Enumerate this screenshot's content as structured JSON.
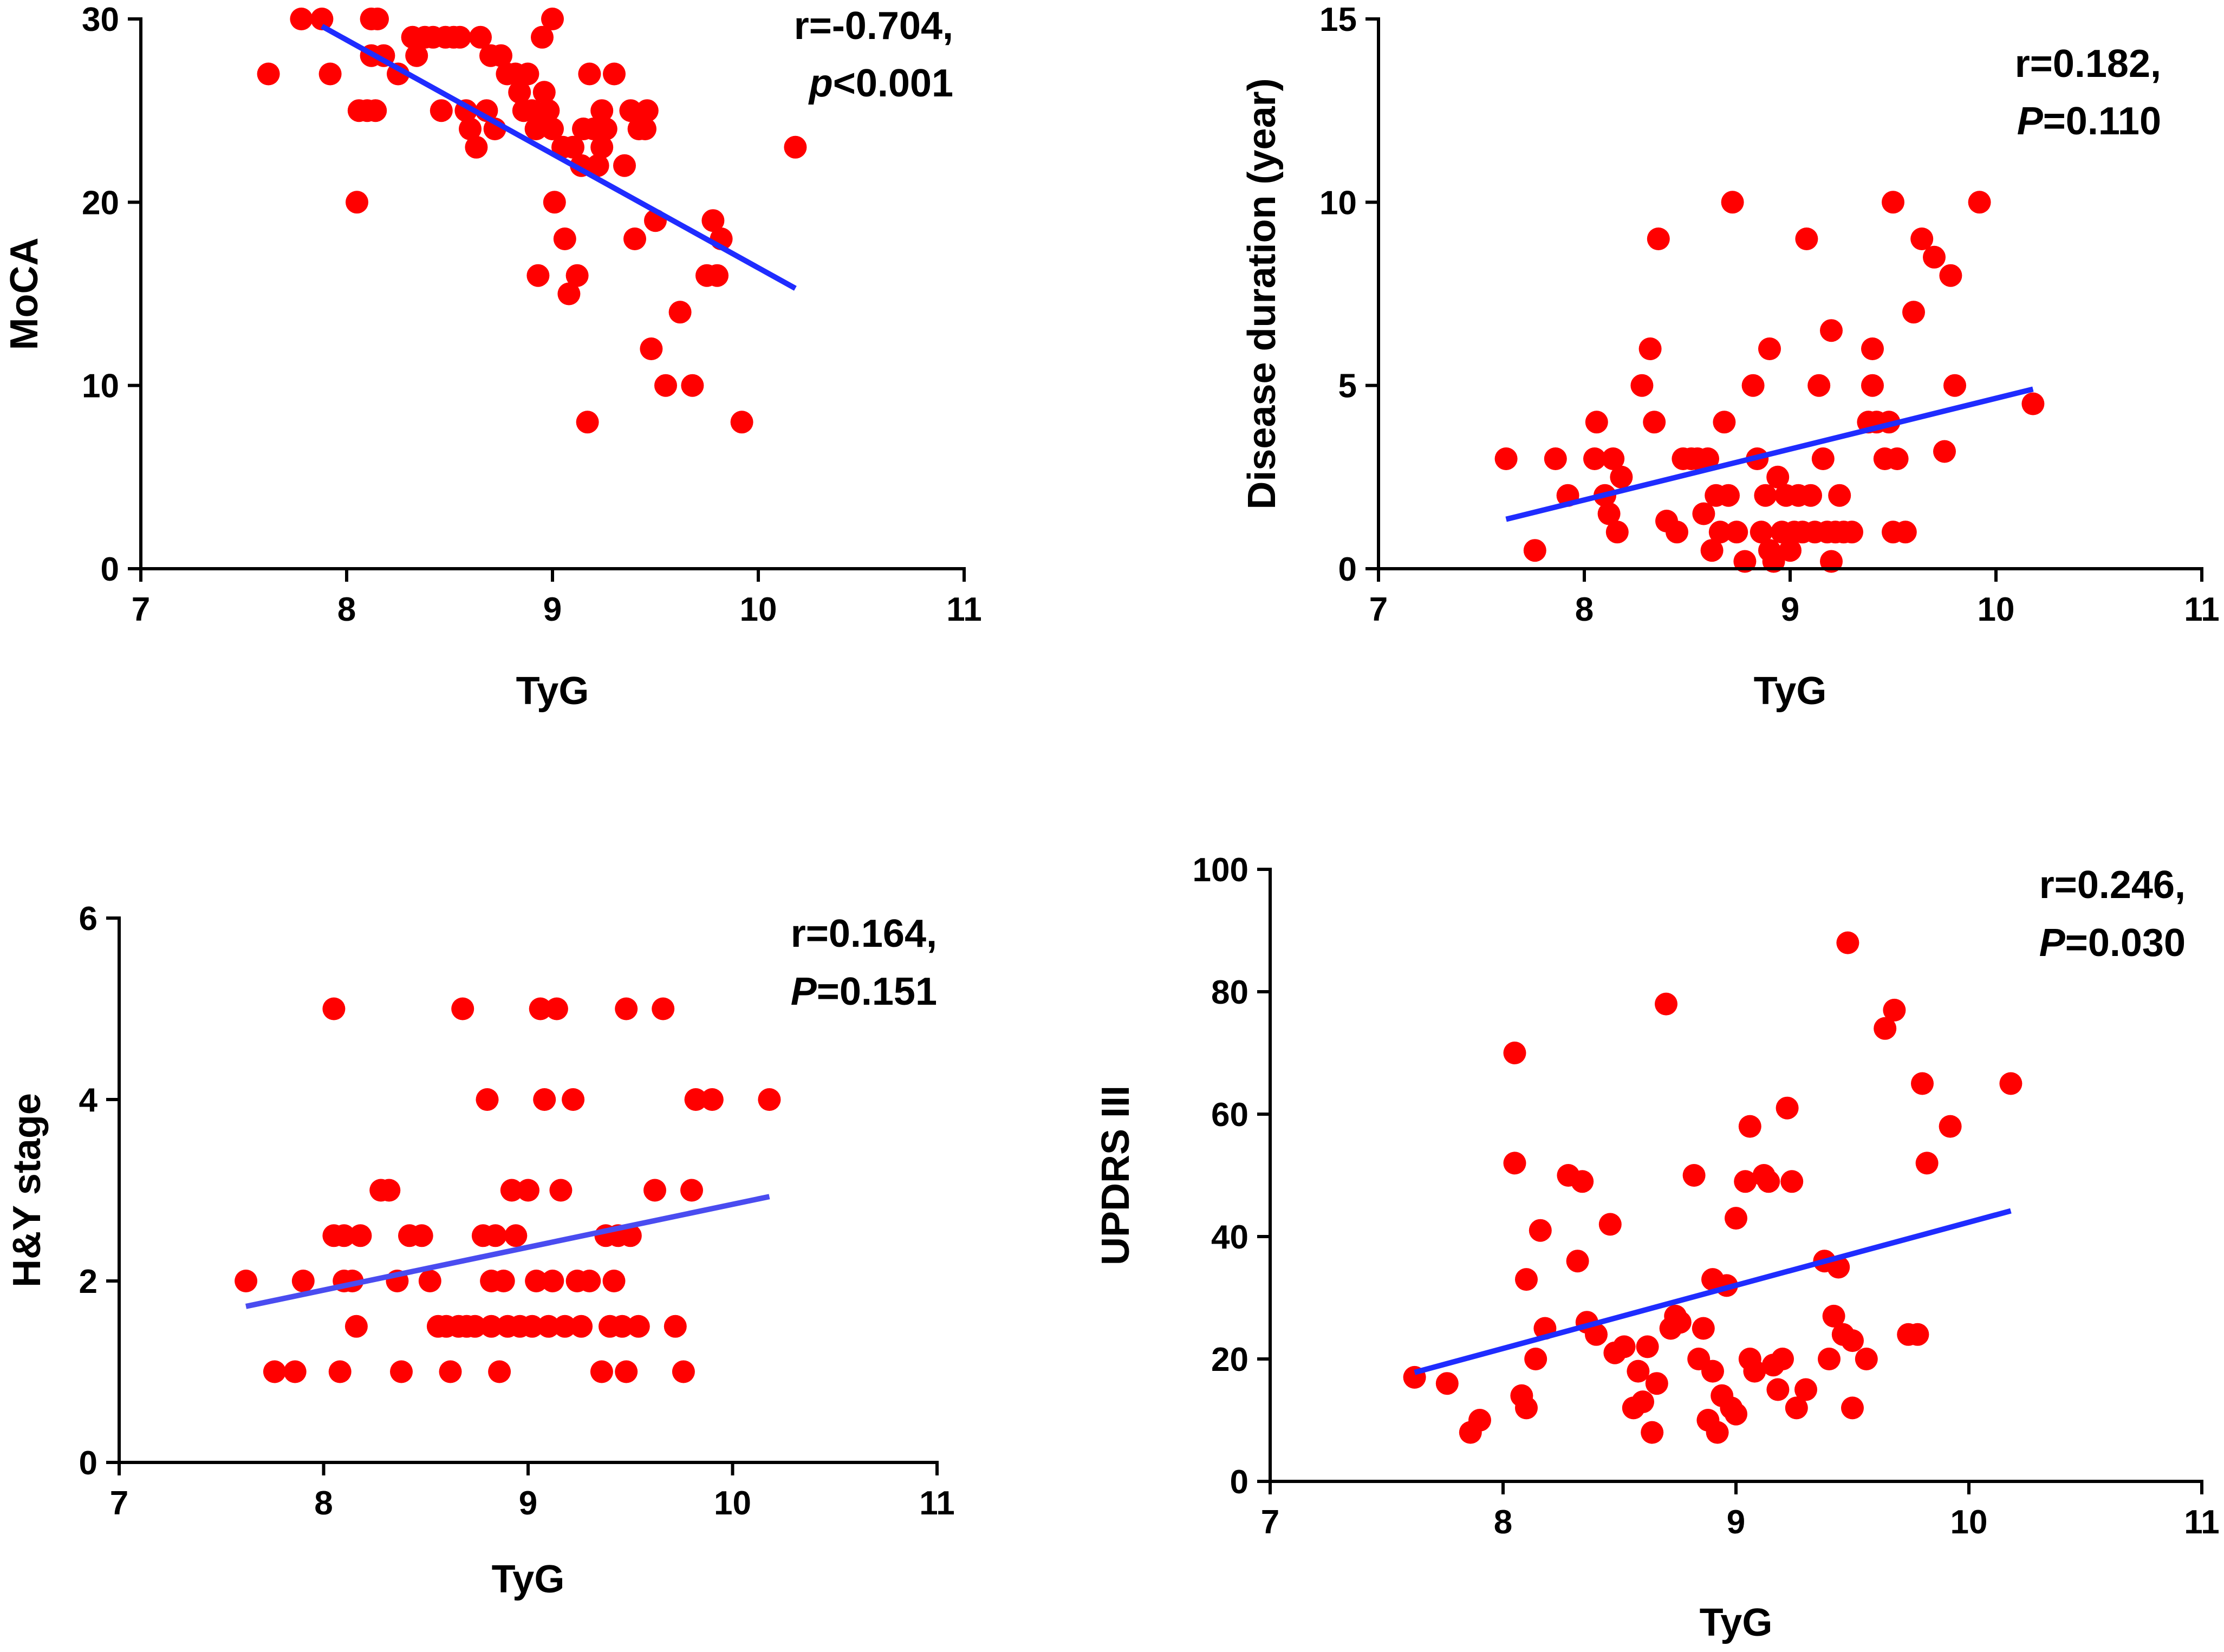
{
  "colors": {
    "points": "#ff0000",
    "fit_line": "#1f2cff",
    "fit_line_hy": "#4a4cf0",
    "axes": "#000000"
  },
  "chart_data": [
    {
      "id": "moca",
      "type": "scatter",
      "xlabel": "TyG",
      "ylabel": "MoCA",
      "xlim": [
        7,
        11
      ],
      "ylim": [
        0,
        30
      ],
      "xticks": [
        "7",
        "8",
        "9",
        "10",
        "11"
      ],
      "yticks": [
        "0",
        "10",
        "20",
        "30"
      ],
      "stats": {
        "r": "r=-0.704,",
        "p_symbol": "p",
        "p_rest": "<0.001"
      },
      "fit_line": {
        "x": [
          7.88,
          10.18
        ],
        "y": [
          29.6,
          15.3
        ]
      },
      "points": [
        [
          7.62,
          27
        ],
        [
          7.78,
          30
        ],
        [
          7.88,
          30
        ],
        [
          7.92,
          27
        ],
        [
          8.05,
          20
        ],
        [
          8.06,
          25
        ],
        [
          8.1,
          25
        ],
        [
          8.12,
          30
        ],
        [
          8.14,
          25
        ],
        [
          8.12,
          28
        ],
        [
          8.15,
          30
        ],
        [
          8.18,
          28
        ],
        [
          8.25,
          27
        ],
        [
          8.32,
          29
        ],
        [
          8.34,
          28
        ],
        [
          8.38,
          29
        ],
        [
          8.42,
          29
        ],
        [
          8.46,
          25
        ],
        [
          8.48,
          29
        ],
        [
          8.52,
          29
        ],
        [
          8.55,
          29
        ],
        [
          8.58,
          25
        ],
        [
          8.6,
          24
        ],
        [
          8.63,
          23
        ],
        [
          8.65,
          29
        ],
        [
          8.68,
          25
        ],
        [
          8.7,
          28
        ],
        [
          8.72,
          24
        ],
        [
          8.75,
          28
        ],
        [
          8.78,
          27
        ],
        [
          8.82,
          27
        ],
        [
          8.84,
          26
        ],
        [
          8.86,
          25
        ],
        [
          8.88,
          27
        ],
        [
          8.9,
          25
        ],
        [
          8.92,
          24
        ],
        [
          8.93,
          16
        ],
        [
          8.95,
          29
        ],
        [
          8.96,
          26
        ],
        [
          8.98,
          25
        ],
        [
          9.0,
          24
        ],
        [
          9.0,
          30
        ],
        [
          9.01,
          20
        ],
        [
          9.05,
          23
        ],
        [
          9.06,
          18
        ],
        [
          9.08,
          15
        ],
        [
          9.1,
          23
        ],
        [
          9.12,
          16
        ],
        [
          9.14,
          22
        ],
        [
          9.15,
          24
        ],
        [
          9.17,
          8
        ],
        [
          9.18,
          27
        ],
        [
          9.2,
          24
        ],
        [
          9.22,
          22
        ],
        [
          9.24,
          25
        ],
        [
          9.24,
          23
        ],
        [
          9.26,
          24
        ],
        [
          9.3,
          27
        ],
        [
          9.35,
          22
        ],
        [
          9.38,
          25
        ],
        [
          9.4,
          18
        ],
        [
          9.42,
          24
        ],
        [
          9.45,
          24
        ],
        [
          9.46,
          25
        ],
        [
          9.48,
          12
        ],
        [
          9.5,
          19
        ],
        [
          9.55,
          10
        ],
        [
          9.62,
          14
        ],
        [
          9.68,
          10
        ],
        [
          9.75,
          16
        ],
        [
          9.78,
          19
        ],
        [
          9.8,
          16
        ],
        [
          9.82,
          18
        ],
        [
          9.92,
          8
        ],
        [
          10.18,
          23
        ]
      ]
    },
    {
      "id": "duration",
      "type": "scatter",
      "xlabel": "TyG",
      "ylabel": "Disease duration (year)",
      "xlim": [
        7,
        11
      ],
      "ylim": [
        0,
        15
      ],
      "xticks": [
        "7",
        "8",
        "9",
        "10",
        "11"
      ],
      "yticks": [
        "0",
        "5",
        "10",
        "15"
      ],
      "stats": {
        "r": "r=0.182,",
        "p_symbol": "P",
        "p_rest": "=0.110"
      },
      "fit_line": {
        "x": [
          7.62,
          10.18
        ],
        "y": [
          1.35,
          4.9
        ]
      },
      "points": [
        [
          7.62,
          3
        ],
        [
          7.76,
          0.5
        ],
        [
          7.86,
          3
        ],
        [
          7.92,
          2
        ],
        [
          8.05,
          3
        ],
        [
          8.06,
          4
        ],
        [
          8.1,
          2
        ],
        [
          8.12,
          1.5
        ],
        [
          8.14,
          3
        ],
        [
          8.16,
          1
        ],
        [
          8.18,
          2.5
        ],
        [
          8.28,
          5
        ],
        [
          8.32,
          6
        ],
        [
          8.34,
          4
        ],
        [
          8.36,
          9
        ],
        [
          8.4,
          1.3
        ],
        [
          8.45,
          1
        ],
        [
          8.48,
          3
        ],
        [
          8.52,
          3
        ],
        [
          8.55,
          3
        ],
        [
          8.58,
          1.5
        ],
        [
          8.6,
          3
        ],
        [
          8.62,
          0.5
        ],
        [
          8.64,
          2
        ],
        [
          8.66,
          1
        ],
        [
          8.68,
          4
        ],
        [
          8.7,
          2
        ],
        [
          8.72,
          10
        ],
        [
          8.74,
          1
        ],
        [
          8.78,
          0.2
        ],
        [
          8.82,
          5
        ],
        [
          8.84,
          3
        ],
        [
          8.86,
          1
        ],
        [
          8.88,
          2
        ],
        [
          8.9,
          0.5
        ],
        [
          8.9,
          6
        ],
        [
          8.92,
          0.2
        ],
        [
          8.94,
          2.5
        ],
        [
          8.96,
          1
        ],
        [
          8.98,
          2
        ],
        [
          9.0,
          0.5
        ],
        [
          9.02,
          1
        ],
        [
          9.04,
          2
        ],
        [
          9.06,
          1
        ],
        [
          9.08,
          9
        ],
        [
          9.1,
          2
        ],
        [
          9.12,
          1
        ],
        [
          9.14,
          5
        ],
        [
          9.16,
          3
        ],
        [
          9.18,
          1
        ],
        [
          9.2,
          0.2
        ],
        [
          9.2,
          6.5
        ],
        [
          9.22,
          1
        ],
        [
          9.24,
          2
        ],
        [
          9.26,
          1
        ],
        [
          9.3,
          1
        ],
        [
          9.38,
          4
        ],
        [
          9.4,
          5
        ],
        [
          9.4,
          6
        ],
        [
          9.42,
          4
        ],
        [
          9.46,
          3
        ],
        [
          9.48,
          4
        ],
        [
          9.5,
          10
        ],
        [
          9.5,
          1
        ],
        [
          9.52,
          3
        ],
        [
          9.56,
          1
        ],
        [
          9.6,
          7
        ],
        [
          9.64,
          9
        ],
        [
          9.7,
          8.5
        ],
        [
          9.75,
          3.2
        ],
        [
          9.78,
          8
        ],
        [
          9.8,
          5
        ],
        [
          9.92,
          10
        ],
        [
          10.18,
          4.5
        ]
      ]
    },
    {
      "id": "hy",
      "type": "scatter",
      "xlabel": "TyG",
      "ylabel": "H&Y stage",
      "xlim": [
        7,
        11
      ],
      "ylim": [
        0,
        6
      ],
      "xticks": [
        "7",
        "8",
        "9",
        "10",
        "11"
      ],
      "yticks": [
        "0",
        "2",
        "4",
        "6"
      ],
      "stats": {
        "r": "r=0.164,",
        "p_symbol": "P",
        "p_rest": "=0.151"
      },
      "fit_line": {
        "x": [
          7.62,
          10.18
        ],
        "y": [
          1.72,
          2.93
        ]
      },
      "points": [
        [
          7.62,
          2
        ],
        [
          7.76,
          1
        ],
        [
          7.86,
          1
        ],
        [
          7.9,
          2
        ],
        [
          8.05,
          5
        ],
        [
          8.05,
          2.5
        ],
        [
          8.08,
          1
        ],
        [
          8.1,
          2
        ],
        [
          8.1,
          2.5
        ],
        [
          8.14,
          2
        ],
        [
          8.16,
          1.5
        ],
        [
          8.18,
          2.5
        ],
        [
          8.28,
          3
        ],
        [
          8.32,
          3
        ],
        [
          8.36,
          2
        ],
        [
          8.38,
          1
        ],
        [
          8.42,
          2.5
        ],
        [
          8.48,
          2.5
        ],
        [
          8.52,
          2
        ],
        [
          8.56,
          1.5
        ],
        [
          8.6,
          1.5
        ],
        [
          8.62,
          1
        ],
        [
          8.66,
          1.5
        ],
        [
          8.68,
          5
        ],
        [
          8.7,
          1.5
        ],
        [
          8.74,
          1.5
        ],
        [
          8.78,
          2.5
        ],
        [
          8.8,
          4
        ],
        [
          8.82,
          1.5
        ],
        [
          8.82,
          2
        ],
        [
          8.84,
          2.5
        ],
        [
          8.86,
          1
        ],
        [
          8.88,
          2
        ],
        [
          8.9,
          1.5
        ],
        [
          8.92,
          3
        ],
        [
          8.94,
          2.5
        ],
        [
          8.96,
          1.5
        ],
        [
          9.0,
          3
        ],
        [
          9.02,
          1.5
        ],
        [
          9.04,
          2
        ],
        [
          9.06,
          5
        ],
        [
          9.08,
          4
        ],
        [
          9.1,
          1.5
        ],
        [
          9.12,
          2
        ],
        [
          9.14,
          5
        ],
        [
          9.16,
          3
        ],
        [
          9.18,
          1.5
        ],
        [
          9.22,
          4
        ],
        [
          9.24,
          2
        ],
        [
          9.26,
          1.5
        ],
        [
          9.3,
          2
        ],
        [
          9.36,
          1
        ],
        [
          9.38,
          2.5
        ],
        [
          9.4,
          1.5
        ],
        [
          9.42,
          2
        ],
        [
          9.44,
          2.5
        ],
        [
          9.46,
          1.5
        ],
        [
          9.48,
          5
        ],
        [
          9.48,
          1
        ],
        [
          9.5,
          2.5
        ],
        [
          9.54,
          1.5
        ],
        [
          9.62,
          3
        ],
        [
          9.66,
          5
        ],
        [
          9.72,
          1.5
        ],
        [
          9.76,
          1
        ],
        [
          9.8,
          3
        ],
        [
          9.82,
          4
        ],
        [
          9.9,
          4
        ],
        [
          10.18,
          4
        ]
      ]
    },
    {
      "id": "updrs",
      "type": "scatter",
      "xlabel": "TyG",
      "ylabel": "UPDRS III",
      "xlim": [
        7,
        11
      ],
      "ylim": [
        0,
        100
      ],
      "xticks": [
        "7",
        "8",
        "9",
        "10",
        "11"
      ],
      "yticks": [
        "0",
        "20",
        "40",
        "60",
        "80",
        "100"
      ],
      "stats": {
        "r": "r=0.246,",
        "p_symbol": "P",
        "p_rest": "=0.030"
      },
      "fit_line": {
        "x": [
          7.62,
          10.18
        ],
        "y": [
          17.8,
          44.2
        ]
      },
      "points": [
        [
          7.62,
          17
        ],
        [
          7.76,
          16
        ],
        [
          7.86,
          8
        ],
        [
          7.9,
          10
        ],
        [
          8.05,
          70
        ],
        [
          8.05,
          52
        ],
        [
          8.08,
          14
        ],
        [
          8.1,
          33
        ],
        [
          8.1,
          12
        ],
        [
          8.14,
          20
        ],
        [
          8.16,
          41
        ],
        [
          8.18,
          25
        ],
        [
          8.28,
          50
        ],
        [
          8.32,
          36
        ],
        [
          8.34,
          49
        ],
        [
          8.36,
          26
        ],
        [
          8.4,
          24
        ],
        [
          8.46,
          42
        ],
        [
          8.48,
          21
        ],
        [
          8.52,
          22
        ],
        [
          8.56,
          12
        ],
        [
          8.58,
          18
        ],
        [
          8.6,
          13
        ],
        [
          8.62,
          22
        ],
        [
          8.64,
          8
        ],
        [
          8.66,
          16
        ],
        [
          8.7,
          78
        ],
        [
          8.72,
          25
        ],
        [
          8.74,
          27
        ],
        [
          8.76,
          26
        ],
        [
          8.82,
          50
        ],
        [
          8.84,
          20
        ],
        [
          8.86,
          25
        ],
        [
          8.88,
          10
        ],
        [
          8.9,
          33
        ],
        [
          8.9,
          18
        ],
        [
          8.92,
          8
        ],
        [
          8.94,
          14
        ],
        [
          8.96,
          32
        ],
        [
          8.98,
          12
        ],
        [
          9.0,
          11
        ],
        [
          9.0,
          43
        ],
        [
          9.04,
          49
        ],
        [
          9.06,
          20
        ],
        [
          9.06,
          58
        ],
        [
          9.08,
          18
        ],
        [
          9.12,
          50
        ],
        [
          9.14,
          49
        ],
        [
          9.16,
          19
        ],
        [
          9.18,
          15
        ],
        [
          9.2,
          20
        ],
        [
          9.22,
          61
        ],
        [
          9.24,
          49
        ],
        [
          9.26,
          12
        ],
        [
          9.3,
          15
        ],
        [
          9.38,
          36
        ],
        [
          9.4,
          20
        ],
        [
          9.42,
          27
        ],
        [
          9.44,
          35
        ],
        [
          9.46,
          24
        ],
        [
          9.48,
          88
        ],
        [
          9.5,
          23
        ],
        [
          9.5,
          12
        ],
        [
          9.56,
          20
        ],
        [
          9.64,
          74
        ],
        [
          9.68,
          77
        ],
        [
          9.74,
          24
        ],
        [
          9.78,
          24
        ],
        [
          9.8,
          65
        ],
        [
          9.82,
          52
        ],
        [
          9.92,
          58
        ],
        [
          10.18,
          65
        ]
      ]
    }
  ]
}
